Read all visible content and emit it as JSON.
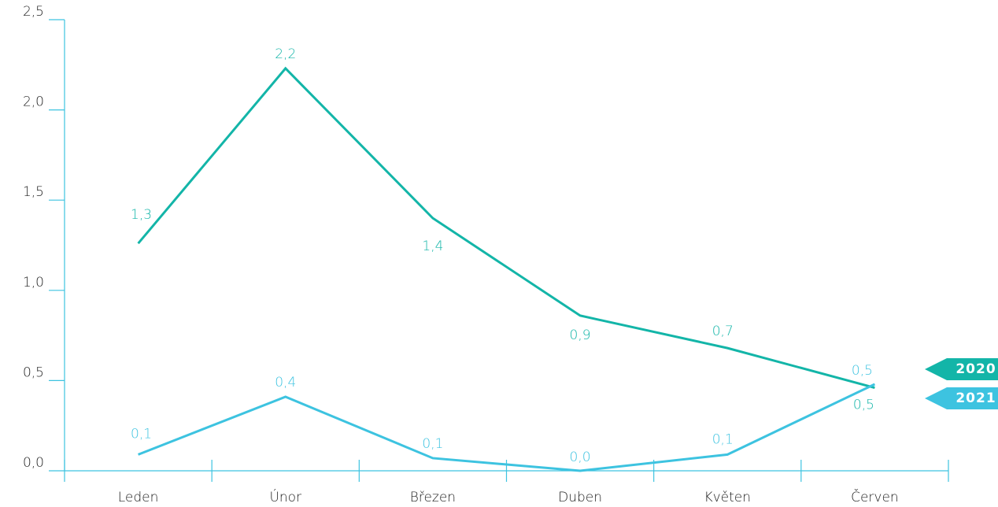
{
  "chart_data": {
    "type": "line",
    "categories": [
      "Leden",
      "Únor",
      "Březen",
      "Duben",
      "Květen",
      "Červen"
    ],
    "series": [
      {
        "name": "2020",
        "color": "#13b5a8",
        "values": [
          1.26,
          2.23,
          1.4,
          0.86,
          0.68,
          0.46
        ],
        "value_labels": [
          "1,3",
          "2,2",
          "1,4",
          "0,9",
          "0,7",
          "0,5"
        ]
      },
      {
        "name": "2021",
        "color": "#3dc3e0",
        "values": [
          0.09,
          0.41,
          0.07,
          0,
          0.09,
          0.48
        ],
        "value_labels": [
          "0,1",
          "0,4",
          "0,1",
          "0,0",
          "0,1",
          "0,5"
        ]
      }
    ],
    "ylim": [
      0,
      2.5
    ],
    "yticks": [
      {
        "value": 0,
        "label": "0,0"
      },
      {
        "value": 0.5,
        "label": "0,5"
      },
      {
        "value": 1,
        "label": "1,0"
      },
      {
        "value": 1.5,
        "label": "1,5"
      },
      {
        "value": 2,
        "label": "2,0"
      },
      {
        "value": 2.5,
        "label": "2,5"
      }
    ],
    "legend": "right"
  }
}
